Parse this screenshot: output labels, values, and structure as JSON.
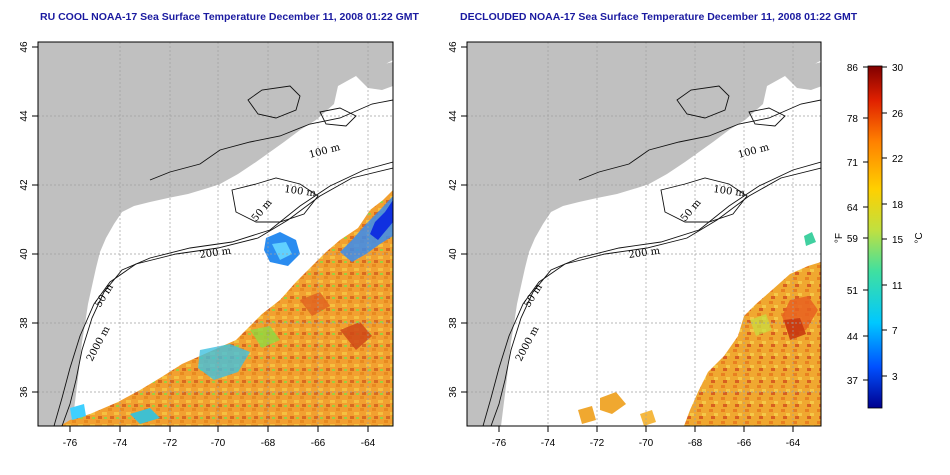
{
  "panels": [
    {
      "title": "RU COOL NOAA-17 Sea Surface Temperature December 11, 2008 01:22 GMT",
      "lon_ticks": [
        "-76",
        "-74",
        "-72",
        "-70",
        "-68",
        "-66",
        "-64"
      ],
      "lat_ticks": [
        "36",
        "38",
        "40",
        "42",
        "44",
        "46"
      ],
      "contour_labels": [
        "100 m",
        "100 m",
        "50 m",
        "200 m",
        "50 m",
        "2000 m"
      ]
    },
    {
      "title": "DECLOUDED NOAA-17 Sea Surface Temperature December 11, 2008 01:22 GMT",
      "lon_ticks": [
        "-76",
        "-74",
        "-72",
        "-70",
        "-68",
        "-66",
        "-64"
      ],
      "lat_ticks": [
        "36",
        "38",
        "40",
        "42",
        "44",
        "46"
      ],
      "contour_labels": [
        "100 m",
        "100 m",
        "50 m",
        "200 m",
        "50 m",
        "2000 m"
      ]
    }
  ],
  "colorbar": {
    "fahrenheit_ticks": [
      "86",
      "78",
      "71",
      "64",
      "59",
      "51",
      "44",
      "37"
    ],
    "celsius_ticks": [
      "30",
      "26",
      "22",
      "18",
      "15",
      "11",
      "7",
      "3"
    ],
    "left_unit": "°F",
    "right_unit": "°C",
    "colors": [
      "#00008f",
      "#0050ff",
      "#00c8ff",
      "#40e0a0",
      "#c0e040",
      "#ffd000",
      "#ff8000",
      "#e02000",
      "#800000"
    ]
  },
  "colors": {
    "land": "#c0c0c0",
    "ocean": "#ffffff",
    "title": "#1a1aa0"
  }
}
